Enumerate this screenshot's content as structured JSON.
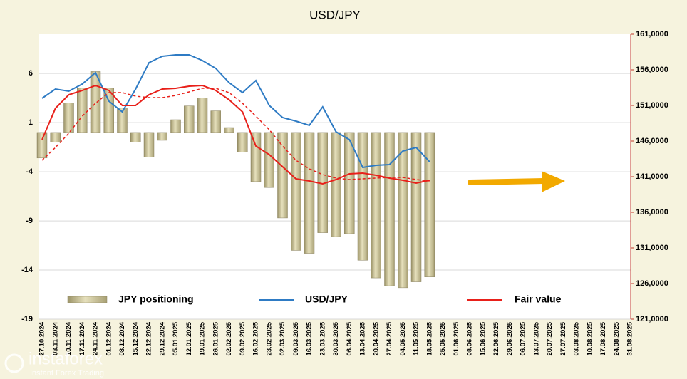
{
  "chart_data": {
    "type": "bar",
    "title": "USD/JPY",
    "categories": [
      "27.10.2024",
      "03.11.2024",
      "10.11.2024",
      "17.11.2024",
      "24.11.2024",
      "01.12.2024",
      "08.12.2024",
      "15.12.2024",
      "22.12.2024",
      "29.12.2024",
      "05.01.2025",
      "12.01.2025",
      "19.01.2025",
      "26.01.2025",
      "02.02.2025",
      "09.02.2025",
      "16.02.2025",
      "23.02.2025",
      "02.03.2025",
      "09.03.2025",
      "16.03.2025",
      "23.03.2025",
      "30.03.2025",
      "06.04.2025",
      "13.04.2025",
      "20.04.2025",
      "27.04.2025",
      "04.05.2025",
      "11.05.2025",
      "18.05.2025",
      "25.05.2025",
      "01.06.2025",
      "08.06.2025",
      "15.06.2025",
      "22.06.2025",
      "29.06.2025",
      "06.07.2025",
      "13.07.2025",
      "20.07.2025",
      "27.07.2025",
      "03.08.2025",
      "10.08.2025",
      "17.08.2025",
      "24.08.2025",
      "31.08.2025"
    ],
    "series": [
      {
        "name": "JPY positioning",
        "type": "bar",
        "axis": "y",
        "color": "#c8c096",
        "values": [
          -2.6,
          -1,
          3,
          4.5,
          6.2,
          4.5,
          2.5,
          -1,
          -2.5,
          -0.8,
          1.3,
          2.7,
          3.5,
          2.2,
          0.5,
          -2,
          -5,
          -5.6,
          -8.7,
          -12,
          -12.3,
          -10.2,
          -10.6,
          -10.3,
          -13,
          -14.8,
          -15.6,
          -15.8,
          -15.2,
          -14.7,
          null,
          null,
          null,
          null,
          null,
          null,
          null,
          null,
          null,
          null,
          null,
          null,
          null,
          null,
          null
        ]
      },
      {
        "name": "USD/JPY",
        "type": "line",
        "axis": "y2",
        "color": "#2e7bc4",
        "values": [
          152,
          153.3,
          153,
          154,
          155.6,
          151.6,
          150.1,
          153.3,
          157,
          157.9,
          158.1,
          158.1,
          157.3,
          156.2,
          154.2,
          152.8,
          154.5,
          151,
          149.3,
          148.8,
          148.2,
          150.8,
          147.3,
          146.2,
          142.3,
          142.6,
          142.7,
          144.6,
          145.1,
          143.1,
          null,
          null,
          null,
          null,
          null,
          null,
          null,
          null,
          null,
          null,
          null,
          null,
          null,
          null,
          null
        ]
      },
      {
        "name": "Fair value",
        "type": "line",
        "axis": "y2",
        "color": "#e8201a",
        "values": [
          146.2,
          150.6,
          152.5,
          153.1,
          153.8,
          153.1,
          151,
          151,
          152.5,
          153.3,
          153.4,
          153.7,
          153.8,
          153.1,
          151.8,
          150.1,
          145.3,
          144.1,
          142.4,
          140.7,
          140.4,
          140,
          140.6,
          141.4,
          141.5,
          141.2,
          140.8,
          140.5,
          140.1,
          140.5,
          null,
          null,
          null,
          null,
          null,
          null,
          null,
          null,
          null,
          null,
          null,
          null,
          null,
          null,
          null
        ]
      },
      {
        "type": "line",
        "axis": "y2",
        "color": "#e8201a",
        "dash": true,
        "values": [
          143.3,
          145.1,
          147.1,
          149.5,
          151.3,
          152.8,
          152.8,
          152.3,
          152.1,
          152.1,
          152.4,
          152.9,
          153.4,
          153.4,
          152.8,
          151.3,
          149.5,
          147.6,
          145.3,
          143.3,
          142.1,
          141.3,
          140.8,
          140.6,
          140.7,
          140.8,
          140.9,
          140.9,
          140.6,
          140.4,
          null,
          null,
          null,
          null,
          null,
          null,
          null,
          null,
          null,
          null,
          null,
          null,
          null,
          null,
          null
        ]
      }
    ],
    "ylim": [
      -19,
      10
    ],
    "yticks": [
      -19,
      -14,
      -9,
      -4,
      1,
      6
    ],
    "y2lim": [
      121,
      161
    ],
    "y2ticks": [
      {
        "value": 121,
        "label": "121,0000"
      },
      {
        "value": 126,
        "label": "126,0000"
      },
      {
        "value": 131,
        "label": "131,0000"
      },
      {
        "value": 136,
        "label": "136,0000"
      },
      {
        "value": 141,
        "label": "141,0000"
      },
      {
        "value": 146,
        "label": "146,0000"
      },
      {
        "value": 151,
        "label": "151,0000"
      },
      {
        "value": 156,
        "label": "156,0000"
      },
      {
        "value": 161,
        "label": "161,0000"
      }
    ],
    "grid": true
  },
  "watermark": {
    "brand": "instaforex",
    "tagline": "Instant Forex Trading"
  }
}
